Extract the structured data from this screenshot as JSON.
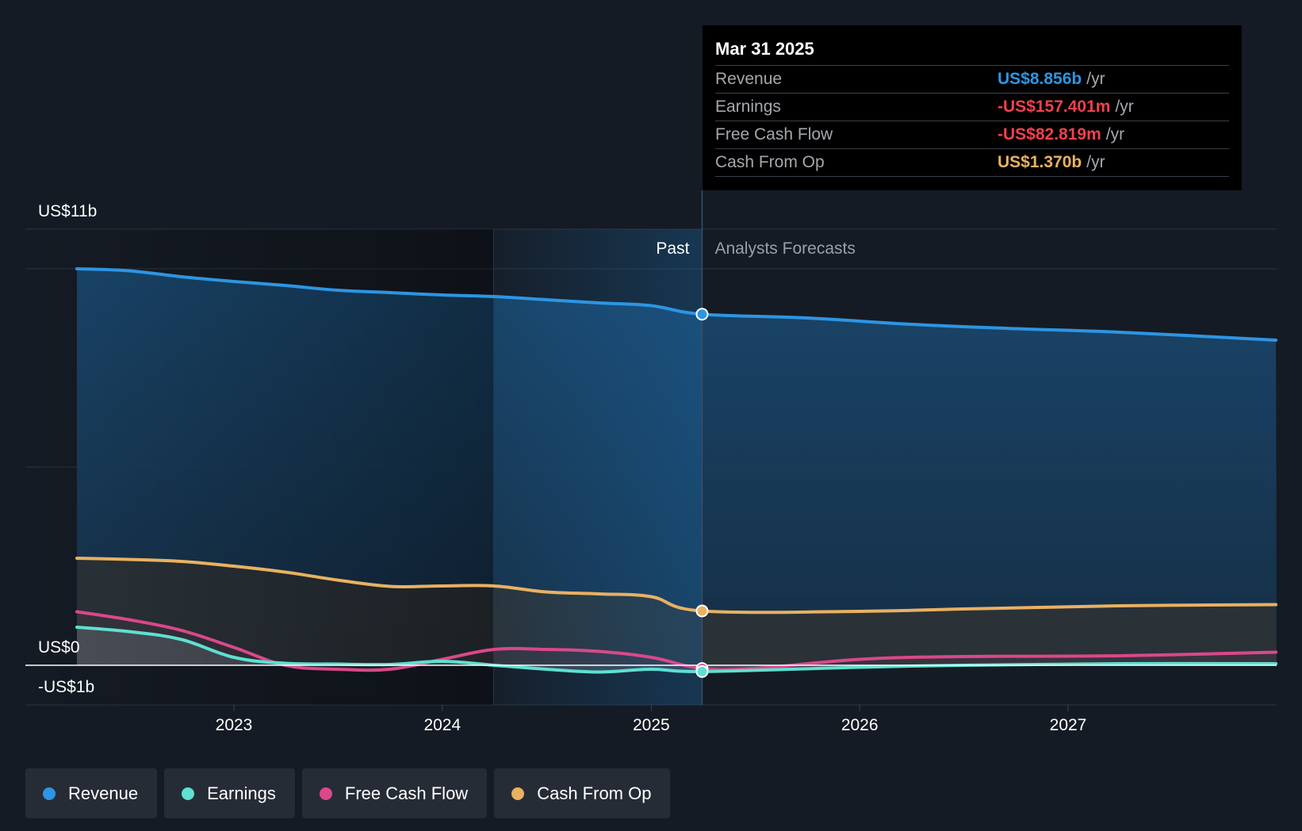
{
  "tooltip": {
    "date": "Mar 31 2025",
    "rows": [
      {
        "label": "Revenue",
        "value": "US$8.856b",
        "unit": "/yr",
        "color": "#2d95e3"
      },
      {
        "label": "Earnings",
        "value": "-US$157.401m",
        "unit": "/yr",
        "color": "#f0414b"
      },
      {
        "label": "Free Cash Flow",
        "value": "-US$82.819m",
        "unit": "/yr",
        "color": "#f0414b"
      },
      {
        "label": "Cash From Op",
        "value": "US$1.370b",
        "unit": "/yr",
        "color": "#e9b162"
      }
    ]
  },
  "legend": [
    {
      "label": "Revenue",
      "color": "#2d95e3"
    },
    {
      "label": "Earnings",
      "color": "#5ee0d2"
    },
    {
      "label": "Free Cash Flow",
      "color": "#d9488a"
    },
    {
      "label": "Cash From Op",
      "color": "#e9b162"
    }
  ],
  "chart_data": {
    "type": "area",
    "x_axis_type": "time",
    "x_ticks": [
      "2023",
      "2024",
      "2025",
      "2026",
      "2027"
    ],
    "y_tick_labels": [
      "US$11b",
      "US$0",
      "-US$1b"
    ],
    "ylim": [
      -1,
      11
    ],
    "past_label": "Past",
    "forecast_label": "Analysts Forecasts",
    "divider_date": "2025-03-31",
    "past_shade_start": "2024-03-31",
    "grid": true,
    "legend_position": "bottom-left",
    "series": [
      {
        "name": "Revenue",
        "color": "#2d95e3",
        "points": [
          [
            "2022-04-01",
            10.0
          ],
          [
            "2022-07-01",
            9.95
          ],
          [
            "2022-10-01",
            9.8
          ],
          [
            "2023-01-01",
            9.68
          ],
          [
            "2023-04-01",
            9.58
          ],
          [
            "2023-07-01",
            9.46
          ],
          [
            "2023-10-01",
            9.4
          ],
          [
            "2024-01-01",
            9.34
          ],
          [
            "2024-04-01",
            9.3
          ],
          [
            "2024-07-01",
            9.22
          ],
          [
            "2024-10-01",
            9.14
          ],
          [
            "2025-01-01",
            9.07
          ],
          [
            "2025-03-31",
            8.856
          ],
          [
            "2025-10-01",
            8.76
          ],
          [
            "2026-04-01",
            8.6
          ],
          [
            "2026-10-01",
            8.49
          ],
          [
            "2027-04-01",
            8.4
          ],
          [
            "2027-12-31",
            8.2
          ]
        ]
      },
      {
        "name": "Cash From Op",
        "color": "#e9b162",
        "points": [
          [
            "2022-04-01",
            2.7
          ],
          [
            "2022-07-01",
            2.67
          ],
          [
            "2022-10-01",
            2.62
          ],
          [
            "2023-01-01",
            2.5
          ],
          [
            "2023-04-01",
            2.35
          ],
          [
            "2023-07-01",
            2.15
          ],
          [
            "2023-10-01",
            1.99
          ],
          [
            "2024-01-01",
            2.0
          ],
          [
            "2024-04-01",
            2.0
          ],
          [
            "2024-07-01",
            1.85
          ],
          [
            "2024-10-01",
            1.8
          ],
          [
            "2025-01-01",
            1.73
          ],
          [
            "2025-03-31",
            1.37
          ],
          [
            "2026-01-01",
            1.36
          ],
          [
            "2026-07-01",
            1.42
          ],
          [
            "2027-04-01",
            1.5
          ],
          [
            "2027-12-31",
            1.53
          ]
        ]
      },
      {
        "name": "Free Cash Flow",
        "color": "#d9488a",
        "points": [
          [
            "2022-04-01",
            1.35
          ],
          [
            "2022-07-01",
            1.15
          ],
          [
            "2022-10-01",
            0.88
          ],
          [
            "2023-01-01",
            0.45
          ],
          [
            "2023-04-01",
            0.0
          ],
          [
            "2023-07-01",
            -0.1
          ],
          [
            "2023-10-01",
            -0.1
          ],
          [
            "2024-01-01",
            0.15
          ],
          [
            "2024-04-01",
            0.4
          ],
          [
            "2024-07-01",
            0.4
          ],
          [
            "2024-10-01",
            0.35
          ],
          [
            "2025-01-01",
            0.2
          ],
          [
            "2025-03-31",
            -0.083
          ],
          [
            "2025-07-01",
            -0.08
          ],
          [
            "2026-01-01",
            0.15
          ],
          [
            "2026-07-01",
            0.22
          ],
          [
            "2027-04-01",
            0.24
          ],
          [
            "2027-12-31",
            0.33
          ]
        ]
      },
      {
        "name": "Earnings",
        "color": "#5ee0d2",
        "points": [
          [
            "2022-04-01",
            0.96
          ],
          [
            "2022-07-01",
            0.85
          ],
          [
            "2022-10-01",
            0.65
          ],
          [
            "2023-01-01",
            0.2
          ],
          [
            "2023-04-01",
            0.05
          ],
          [
            "2023-07-01",
            0.03
          ],
          [
            "2023-10-01",
            0.02
          ],
          [
            "2024-01-01",
            0.1
          ],
          [
            "2024-04-01",
            0.0
          ],
          [
            "2024-07-01",
            -0.1
          ],
          [
            "2024-10-01",
            -0.17
          ],
          [
            "2025-01-01",
            -0.1
          ],
          [
            "2025-03-31",
            -0.157
          ],
          [
            "2026-01-01",
            -0.05
          ],
          [
            "2026-07-01",
            0.0
          ],
          [
            "2027-04-01",
            0.04
          ],
          [
            "2027-12-31",
            0.04
          ]
        ]
      }
    ],
    "tooltip_points": [
      "Revenue",
      "Cash From Op",
      "Free Cash Flow",
      "Earnings"
    ]
  }
}
